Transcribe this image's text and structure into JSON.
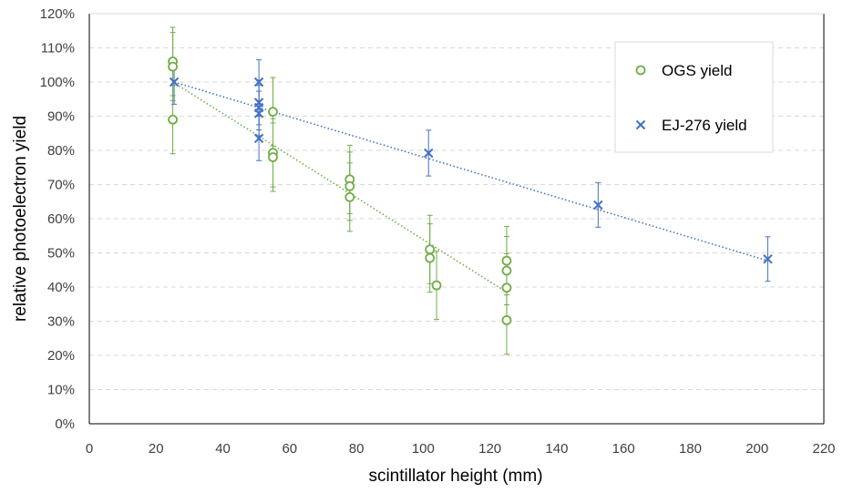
{
  "chart_data": {
    "type": "scatter",
    "title": "",
    "xlabel": "scintillator height (mm)",
    "ylabel": "relative photoelectron yield",
    "xlim": [
      0,
      220
    ],
    "ylim": [
      0,
      1.2
    ],
    "x_ticks": [
      0,
      20,
      40,
      60,
      80,
      100,
      120,
      140,
      160,
      180,
      200,
      220
    ],
    "y_ticks": [
      0,
      0.1,
      0.2,
      0.3,
      0.4,
      0.5,
      0.6,
      0.7,
      0.8,
      0.9,
      1.0,
      1.1,
      1.2
    ],
    "y_tick_labels": [
      "0%",
      "10%",
      "20%",
      "30%",
      "40%",
      "50%",
      "60%",
      "70%",
      "80%",
      "90%",
      "100%",
      "110%",
      "120%"
    ],
    "grid": "horizontal dashed",
    "legend_position": "top-right",
    "series": [
      {
        "name": "OGS yield",
        "marker": "circle",
        "color": "#70AD47",
        "points": [
          {
            "x": 25,
            "y": 1.06,
            "err": 0.1
          },
          {
            "x": 25,
            "y": 1.045,
            "err": 0.1
          },
          {
            "x": 25,
            "y": 0.89,
            "err": 0.1
          },
          {
            "x": 55,
            "y": 0.913,
            "err": 0.1
          },
          {
            "x": 55,
            "y": 0.793,
            "err": 0.1
          },
          {
            "x": 55,
            "y": 0.78,
            "err": 0.1
          },
          {
            "x": 78,
            "y": 0.715,
            "err": 0.1
          },
          {
            "x": 78,
            "y": 0.695,
            "err": 0.1
          },
          {
            "x": 78,
            "y": 0.663,
            "err": 0.1
          },
          {
            "x": 102,
            "y": 0.51,
            "err": 0.1
          },
          {
            "x": 102,
            "y": 0.485,
            "err": 0.1
          },
          {
            "x": 104,
            "y": 0.405,
            "err": 0.1
          },
          {
            "x": 125,
            "y": 0.477,
            "err": 0.1
          },
          {
            "x": 125,
            "y": 0.448,
            "err": 0.1
          },
          {
            "x": 125,
            "y": 0.398,
            "err": 0.1
          },
          {
            "x": 125,
            "y": 0.303,
            "err": 0.1
          }
        ],
        "trendline": {
          "from": [
            25,
            1.0
          ],
          "to": [
            125,
            0.385
          ]
        }
      },
      {
        "name": "EJ-276 yield",
        "marker": "x",
        "color": "#4472C4",
        "points": [
          {
            "x": 25.4,
            "y": 1.0,
            "err": 0.065
          },
          {
            "x": 50.8,
            "y": 1.0,
            "err": 0.065
          },
          {
            "x": 50.8,
            "y": 0.94,
            "err": 0.065
          },
          {
            "x": 50.8,
            "y": 0.925,
            "err": 0.065
          },
          {
            "x": 50.8,
            "y": 0.908,
            "err": 0.065
          },
          {
            "x": 50.8,
            "y": 0.835,
            "err": 0.065
          },
          {
            "x": 101.6,
            "y": 0.792,
            "err": 0.067
          },
          {
            "x": 152.4,
            "y": 0.64,
            "err": 0.065
          },
          {
            "x": 203.2,
            "y": 0.482,
            "err": 0.065
          }
        ],
        "trendline": {
          "from": [
            25.4,
            1.0
          ],
          "to": [
            203.2,
            0.477
          ]
        }
      }
    ]
  }
}
